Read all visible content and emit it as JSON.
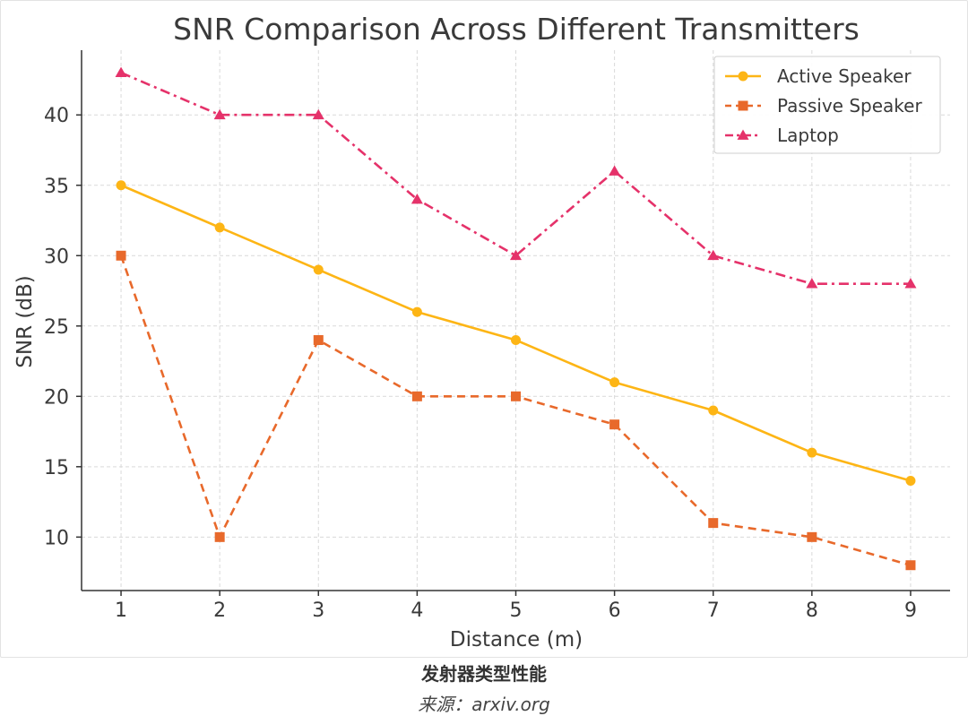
{
  "chart_data": {
    "type": "line",
    "title": "SNR Comparison Across Different Transmitters",
    "xlabel": "Distance (m)",
    "ylabel": "SNR (dB)",
    "x": [
      1,
      2,
      3,
      4,
      5,
      6,
      7,
      8,
      9
    ],
    "xlim": [
      0.6,
      9.4
    ],
    "ylim": [
      6.2,
      44.6
    ],
    "yticks": [
      10,
      15,
      20,
      25,
      30,
      35,
      40
    ],
    "grid": true,
    "legend_position": "top-right",
    "series": [
      {
        "name": "Active Speaker",
        "values": [
          35,
          32,
          29,
          26,
          24,
          21,
          19,
          16,
          14
        ],
        "color": "#FDB515",
        "marker": "circle",
        "linestyle": "solid"
      },
      {
        "name": "Passive Speaker",
        "values": [
          30,
          10,
          24,
          20,
          20,
          18,
          11,
          10,
          8
        ],
        "color": "#E8692B",
        "marker": "square",
        "linestyle": "dashed"
      },
      {
        "name": "Laptop",
        "values": [
          43,
          40,
          40,
          34,
          30,
          36,
          30,
          28,
          28
        ],
        "color": "#E5326A",
        "marker": "triangle",
        "linestyle": "dashdot"
      }
    ]
  },
  "caption": "发射器类型性能",
  "source": "来源：arxiv.org"
}
